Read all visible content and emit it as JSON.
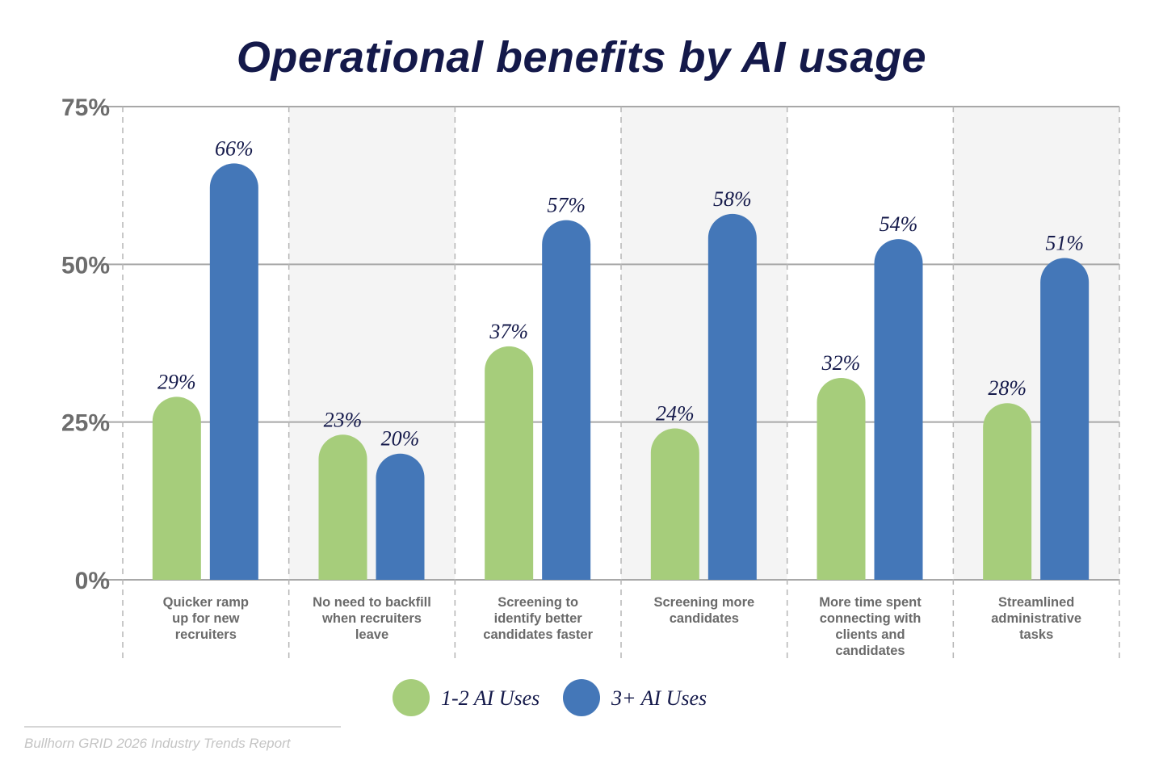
{
  "chart_data": {
    "type": "bar",
    "title": "Operational benefits by AI usage",
    "categories": [
      "Quicker ramp\nup for new\nrecruiters",
      "No need to backfill\nwhen recruiters\nleave",
      "Screening to\nidentify better\ncandidates faster",
      "Screening more\ncandidates",
      "More time spent\nconnecting with\nclients and\ncandidates",
      "Streamlined\nadministrative\ntasks"
    ],
    "series": [
      {
        "name": "1-2 AI Uses",
        "color": "#a6cd7b",
        "values": [
          29,
          23,
          37,
          24,
          32,
          28
        ]
      },
      {
        "name": "3+ AI Uses",
        "color": "#4477b8",
        "values": [
          66,
          20,
          57,
          58,
          54,
          51
        ]
      }
    ],
    "ylim": [
      0,
      75
    ],
    "yticks": [
      "0%",
      "25%",
      "50%",
      "75%"
    ],
    "ytick_values": [
      0,
      25,
      50,
      75
    ],
    "value_suffix": "%",
    "grid": true,
    "legend_placement": "bottom-center",
    "alternate_column_shading": "#f4f4f4"
  },
  "footer": "Bullhorn GRID 2026 Industry Trends Report"
}
